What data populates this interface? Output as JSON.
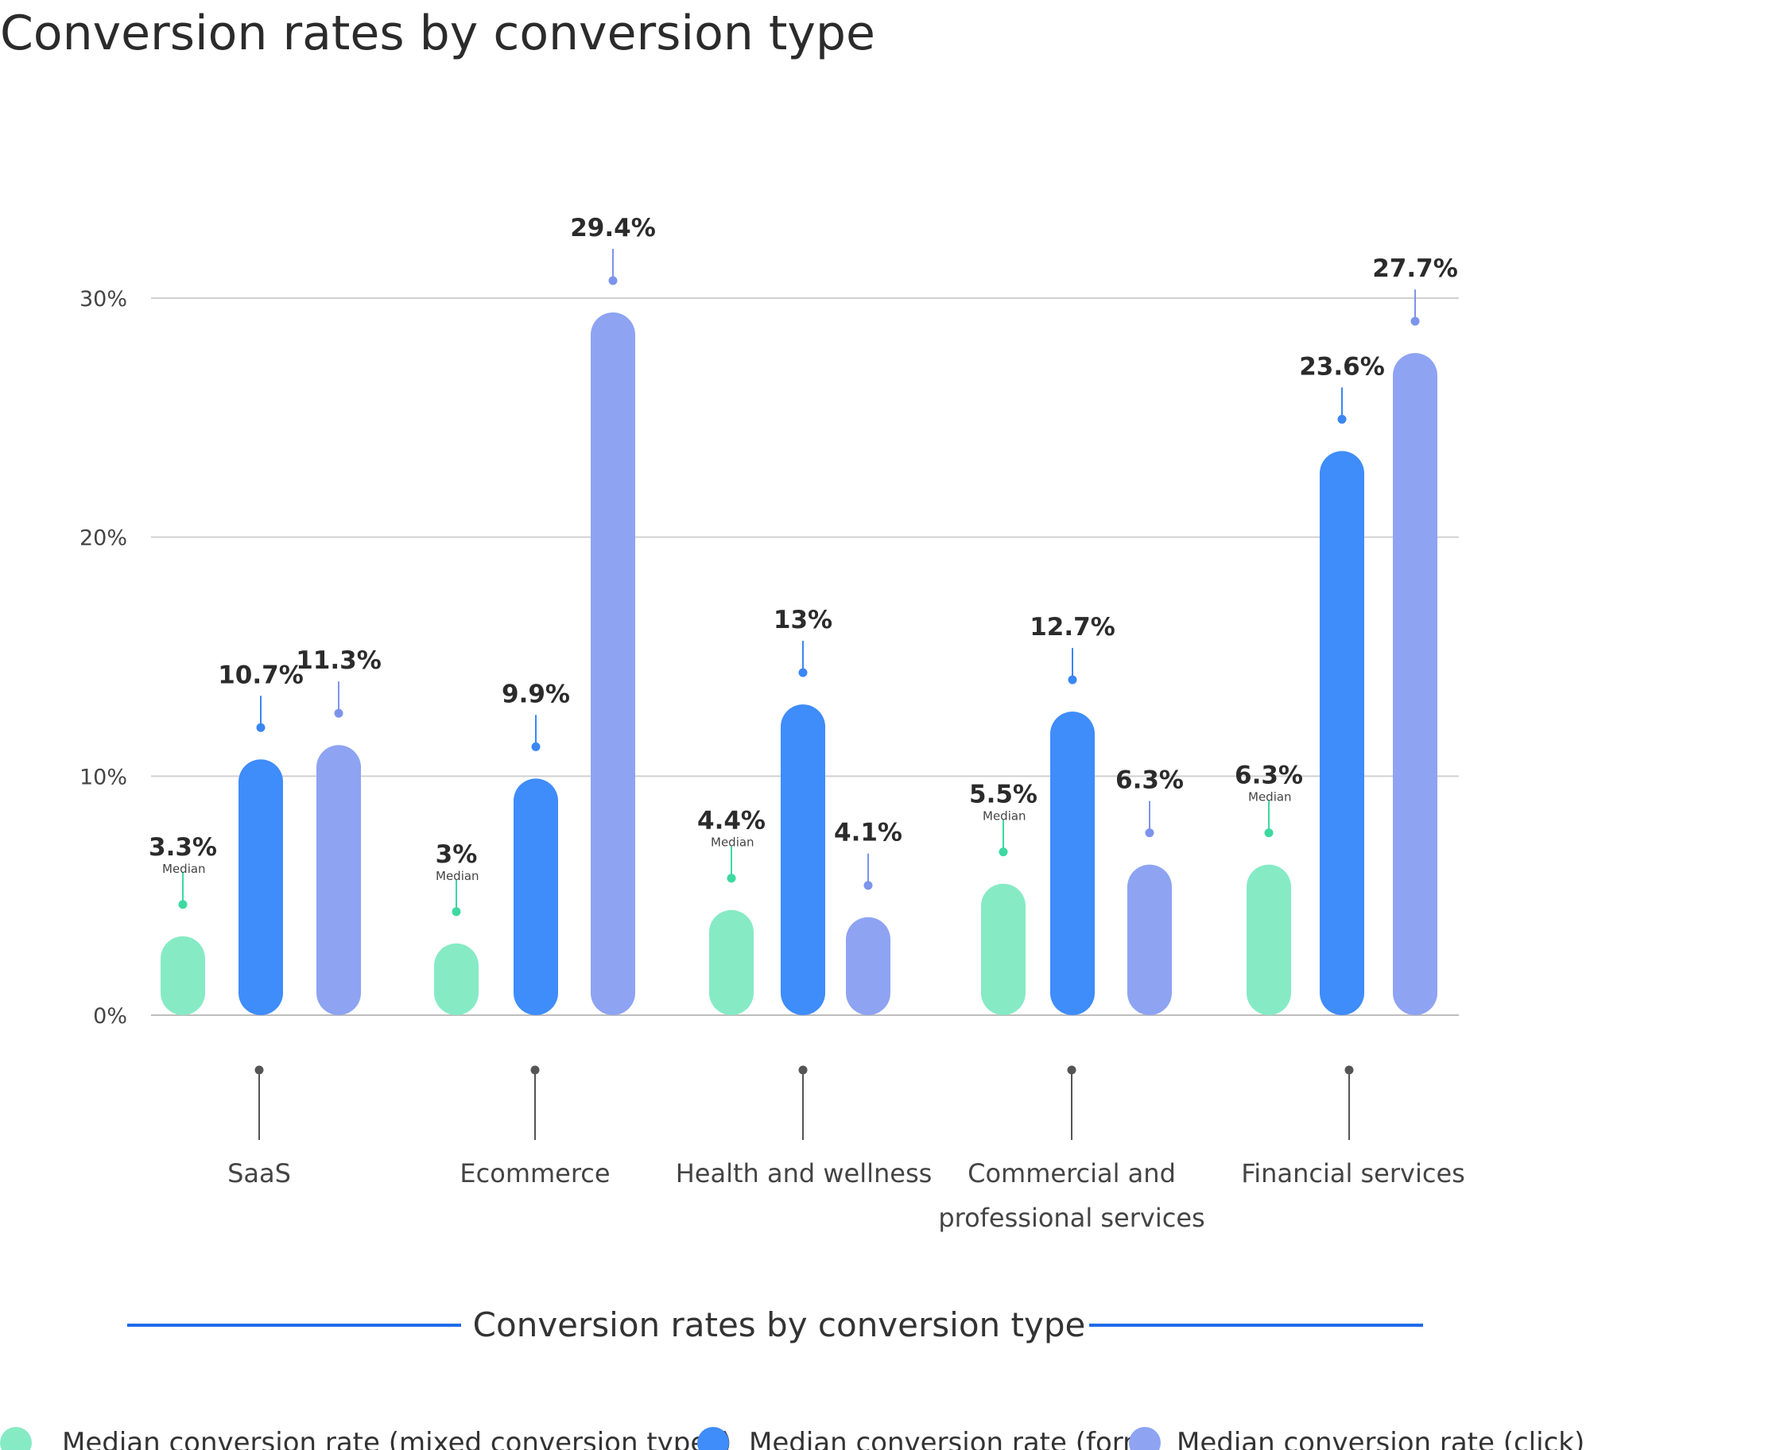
{
  "chart_data": {
    "type": "bar",
    "title": "Conversion rates by conversion type",
    "subtitle": "Conversion rates by conversion type",
    "xlabel": "",
    "ylabel": "",
    "ylim": [
      0,
      30
    ],
    "yticks": [
      0,
      10,
      20,
      30
    ],
    "ytick_labels": [
      "0%",
      "10%",
      "20%",
      "30%"
    ],
    "grid": true,
    "legend_position": "bottom",
    "categories": [
      "SaaS",
      "Ecommerce",
      "Health and wellness",
      "Commercial and professional services",
      "Financial services"
    ],
    "category_lines": [
      [
        "SaaS"
      ],
      [
        "Ecommerce"
      ],
      [
        "Health and wellness"
      ],
      [
        "Commercial and",
        "professional services"
      ],
      [
        "Financial services"
      ]
    ],
    "series": [
      {
        "name": "Median conversion rate (mixed conversion types)",
        "color": "#86ebc4",
        "dot_color": "#3dd9a0",
        "values": [
          3.3,
          3,
          4.4,
          5.5,
          6.3
        ],
        "labels": [
          "3.3%",
          "3%",
          "4.4%",
          "5.5%",
          "6.3%"
        ],
        "sublabel": "Median"
      },
      {
        "name": "Median conversion rate (form)",
        "color": "#3f8cfb",
        "dot_color": "#3a86f5",
        "values": [
          10.7,
          9.9,
          13,
          12.7,
          23.6
        ],
        "labels": [
          "10.7%",
          "9.9%",
          "13%",
          "12.7%",
          "23.6%"
        ]
      },
      {
        "name": "Median conversion rate (click)",
        "color": "#8ea3f2",
        "dot_color": "#7d94ec",
        "values": [
          11.3,
          29.4,
          4.1,
          6.3,
          27.7
        ],
        "labels": [
          "11.3%",
          "29.4%",
          "4.1%",
          "6.3%",
          "27.7%"
        ]
      }
    ]
  }
}
